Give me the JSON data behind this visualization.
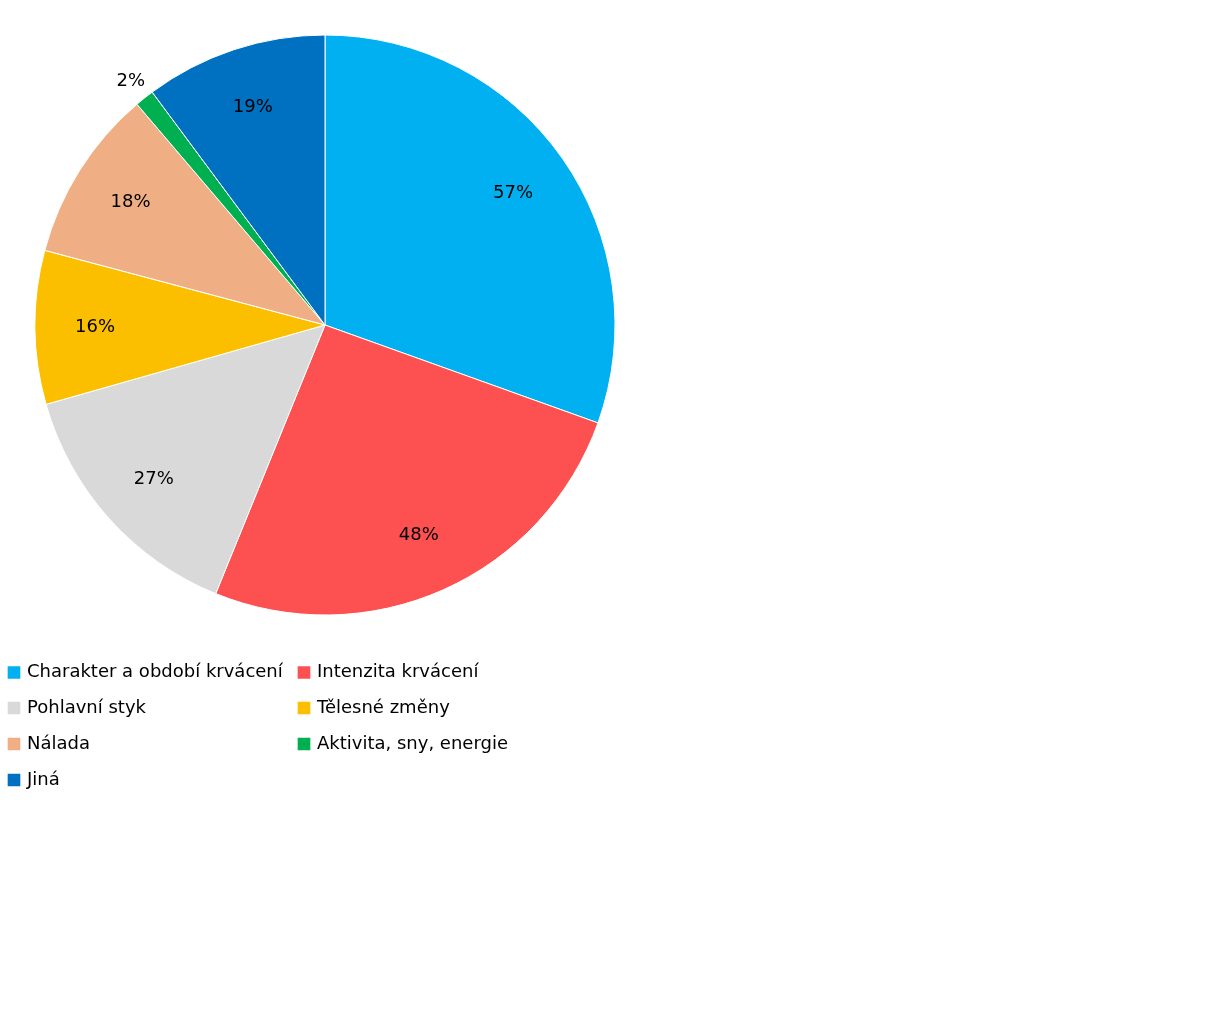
{
  "chart_data": {
    "type": "pie",
    "categories": [
      "Charakter a období krvácení",
      "Intenzita krvácení",
      "Pohlavní styk",
      "Tělesné změny",
      "Nálada",
      "Aktivita, sny, energie",
      "Jiná"
    ],
    "values": [
      57,
      48,
      27,
      16,
      18,
      2,
      19
    ],
    "value_labels": [
      "57%",
      "48%",
      "27%",
      "16%",
      "18%",
      "2%",
      "19%"
    ],
    "colors": [
      "#00b0f0",
      "#fd5050",
      "#d9d9d9",
      "#fbbf00",
      "#f0ae84",
      "#00b050",
      "#0070c0"
    ],
    "legend": "bottom"
  }
}
